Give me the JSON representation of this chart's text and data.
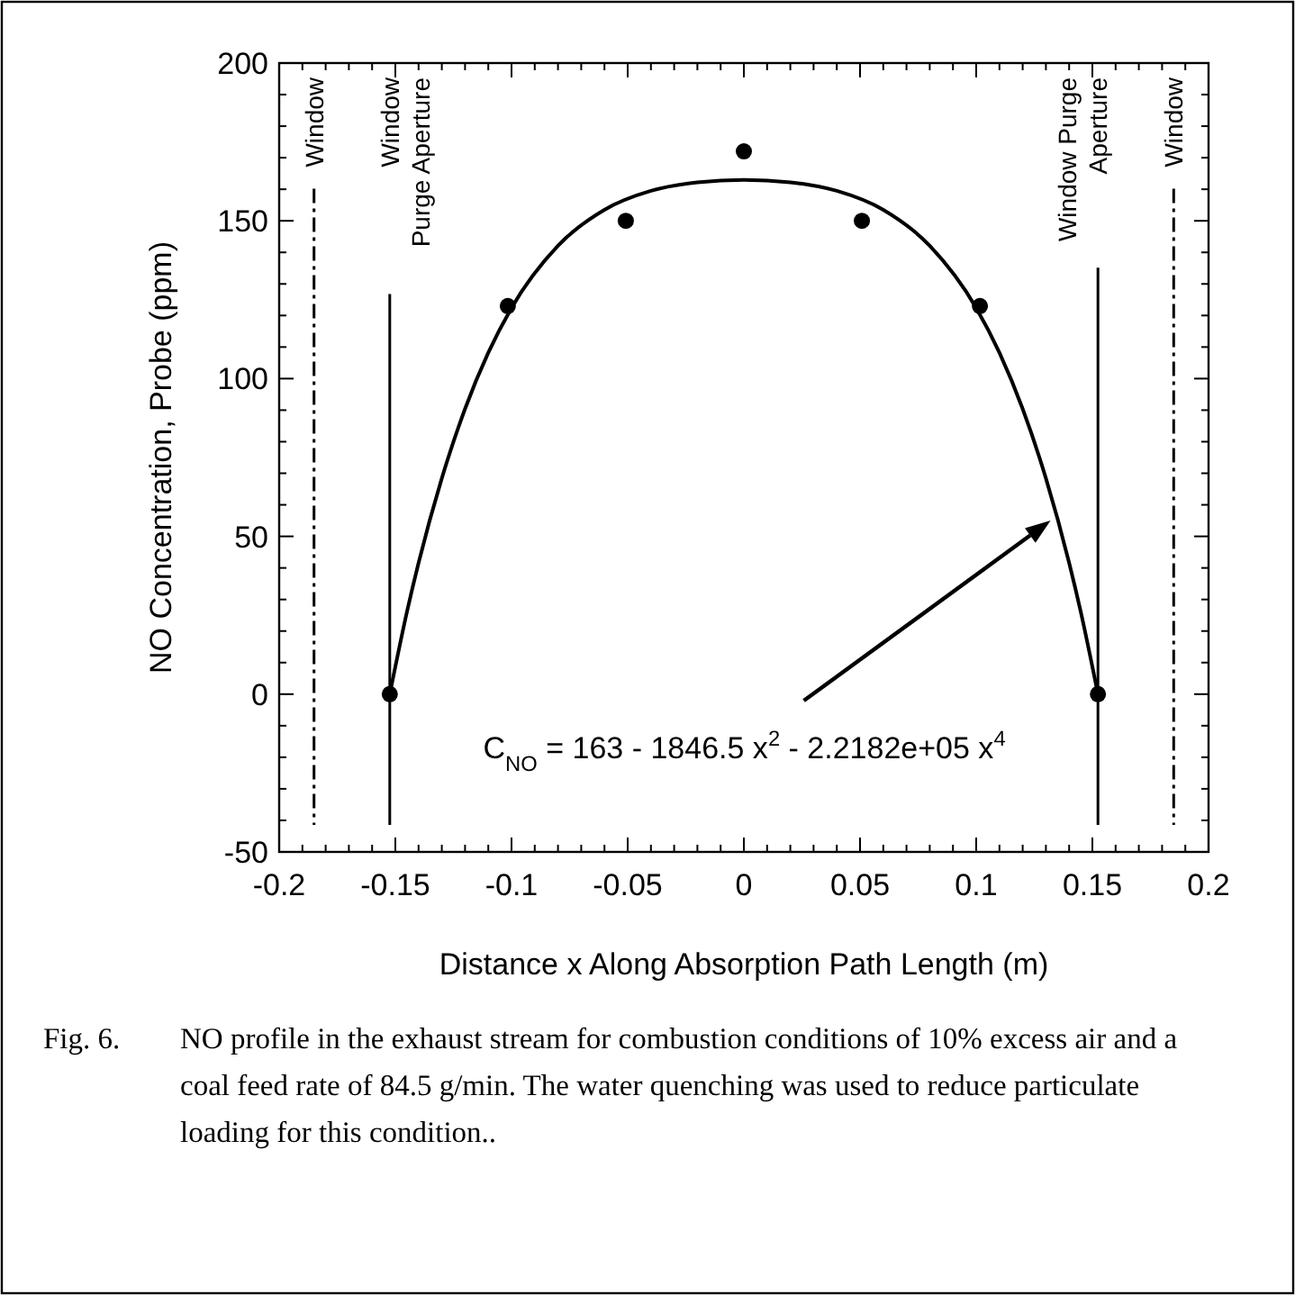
{
  "chart_data": {
    "type": "scatter",
    "xlabel": "Distance x Along Absorption Path Length (m)",
    "ylabel": "NO Concentration, Probe (ppm)",
    "xlim": [
      -0.2,
      0.2
    ],
    "xticks": [
      -0.2,
      -0.15,
      -0.1,
      -0.05,
      0,
      0.05,
      0.1,
      0.15,
      0.2
    ],
    "ylim": [
      -50,
      200
    ],
    "yticks": [
      -50,
      0,
      50,
      100,
      150,
      200
    ],
    "grid": false,
    "marker": "circle",
    "series": [
      {
        "color": "#000000",
        "x": [
          -0.1524,
          -0.1016,
          -0.0508,
          0,
          0.0508,
          0.1016,
          0.1524
        ],
        "values": [
          0,
          123,
          150,
          172,
          150,
          123,
          0
        ]
      },
      {
        "type": "line",
        "color": "#000000",
        "marker": "none",
        "line_style": "solid",
        "x": [
          -0.1524,
          -0.145,
          -0.14,
          -0.13,
          -0.12,
          -0.11,
          -0.1,
          -0.08,
          -0.06,
          -0.04,
          -0.02,
          0,
          0.02,
          0.04,
          0.06,
          0.08,
          0.1,
          0.11,
          0.12,
          0.13,
          0.14,
          0.145,
          0.1524
        ],
        "values": [
          0,
          26.1,
          41.6,
          68.4,
          90.4,
          108.2,
          122.4,
          142.1,
          153.5,
          159.5,
          162.2,
          163,
          162.2,
          159.5,
          153.5,
          142.1,
          122.4,
          108.2,
          90.4,
          68.4,
          41.6,
          26.1,
          0
        ]
      }
    ],
    "ref_lines": [
      {
        "axis": "x",
        "value": -0.185,
        "label": "Window",
        "line_style": "dashed",
        "color": "#000000"
      },
      {
        "axis": "x",
        "value": -0.1524,
        "label": "Window\nPurge Aperture",
        "line_style": "solid",
        "color": "#000000"
      },
      {
        "axis": "x",
        "value": 0.1524,
        "label": "Window Purge\nAperture",
        "line_style": "solid",
        "color": "#000000"
      },
      {
        "axis": "x",
        "value": 0.185,
        "label": "Window",
        "line_style": "dashed",
        "color": "#000000"
      }
    ],
    "annotations": [
      "C$_{NO}$ = 163 - 1846.5 x$^{2}$ - 2.2182e+05 x$^{4}$",
      "Fig. 6.",
      "NO profile in the exhaust stream for combustion conditions of 10% excess air and a coal feed rate of 84.5 g/min.  The water quenching was used to reduce particulate loading for this condition.."
    ]
  }
}
